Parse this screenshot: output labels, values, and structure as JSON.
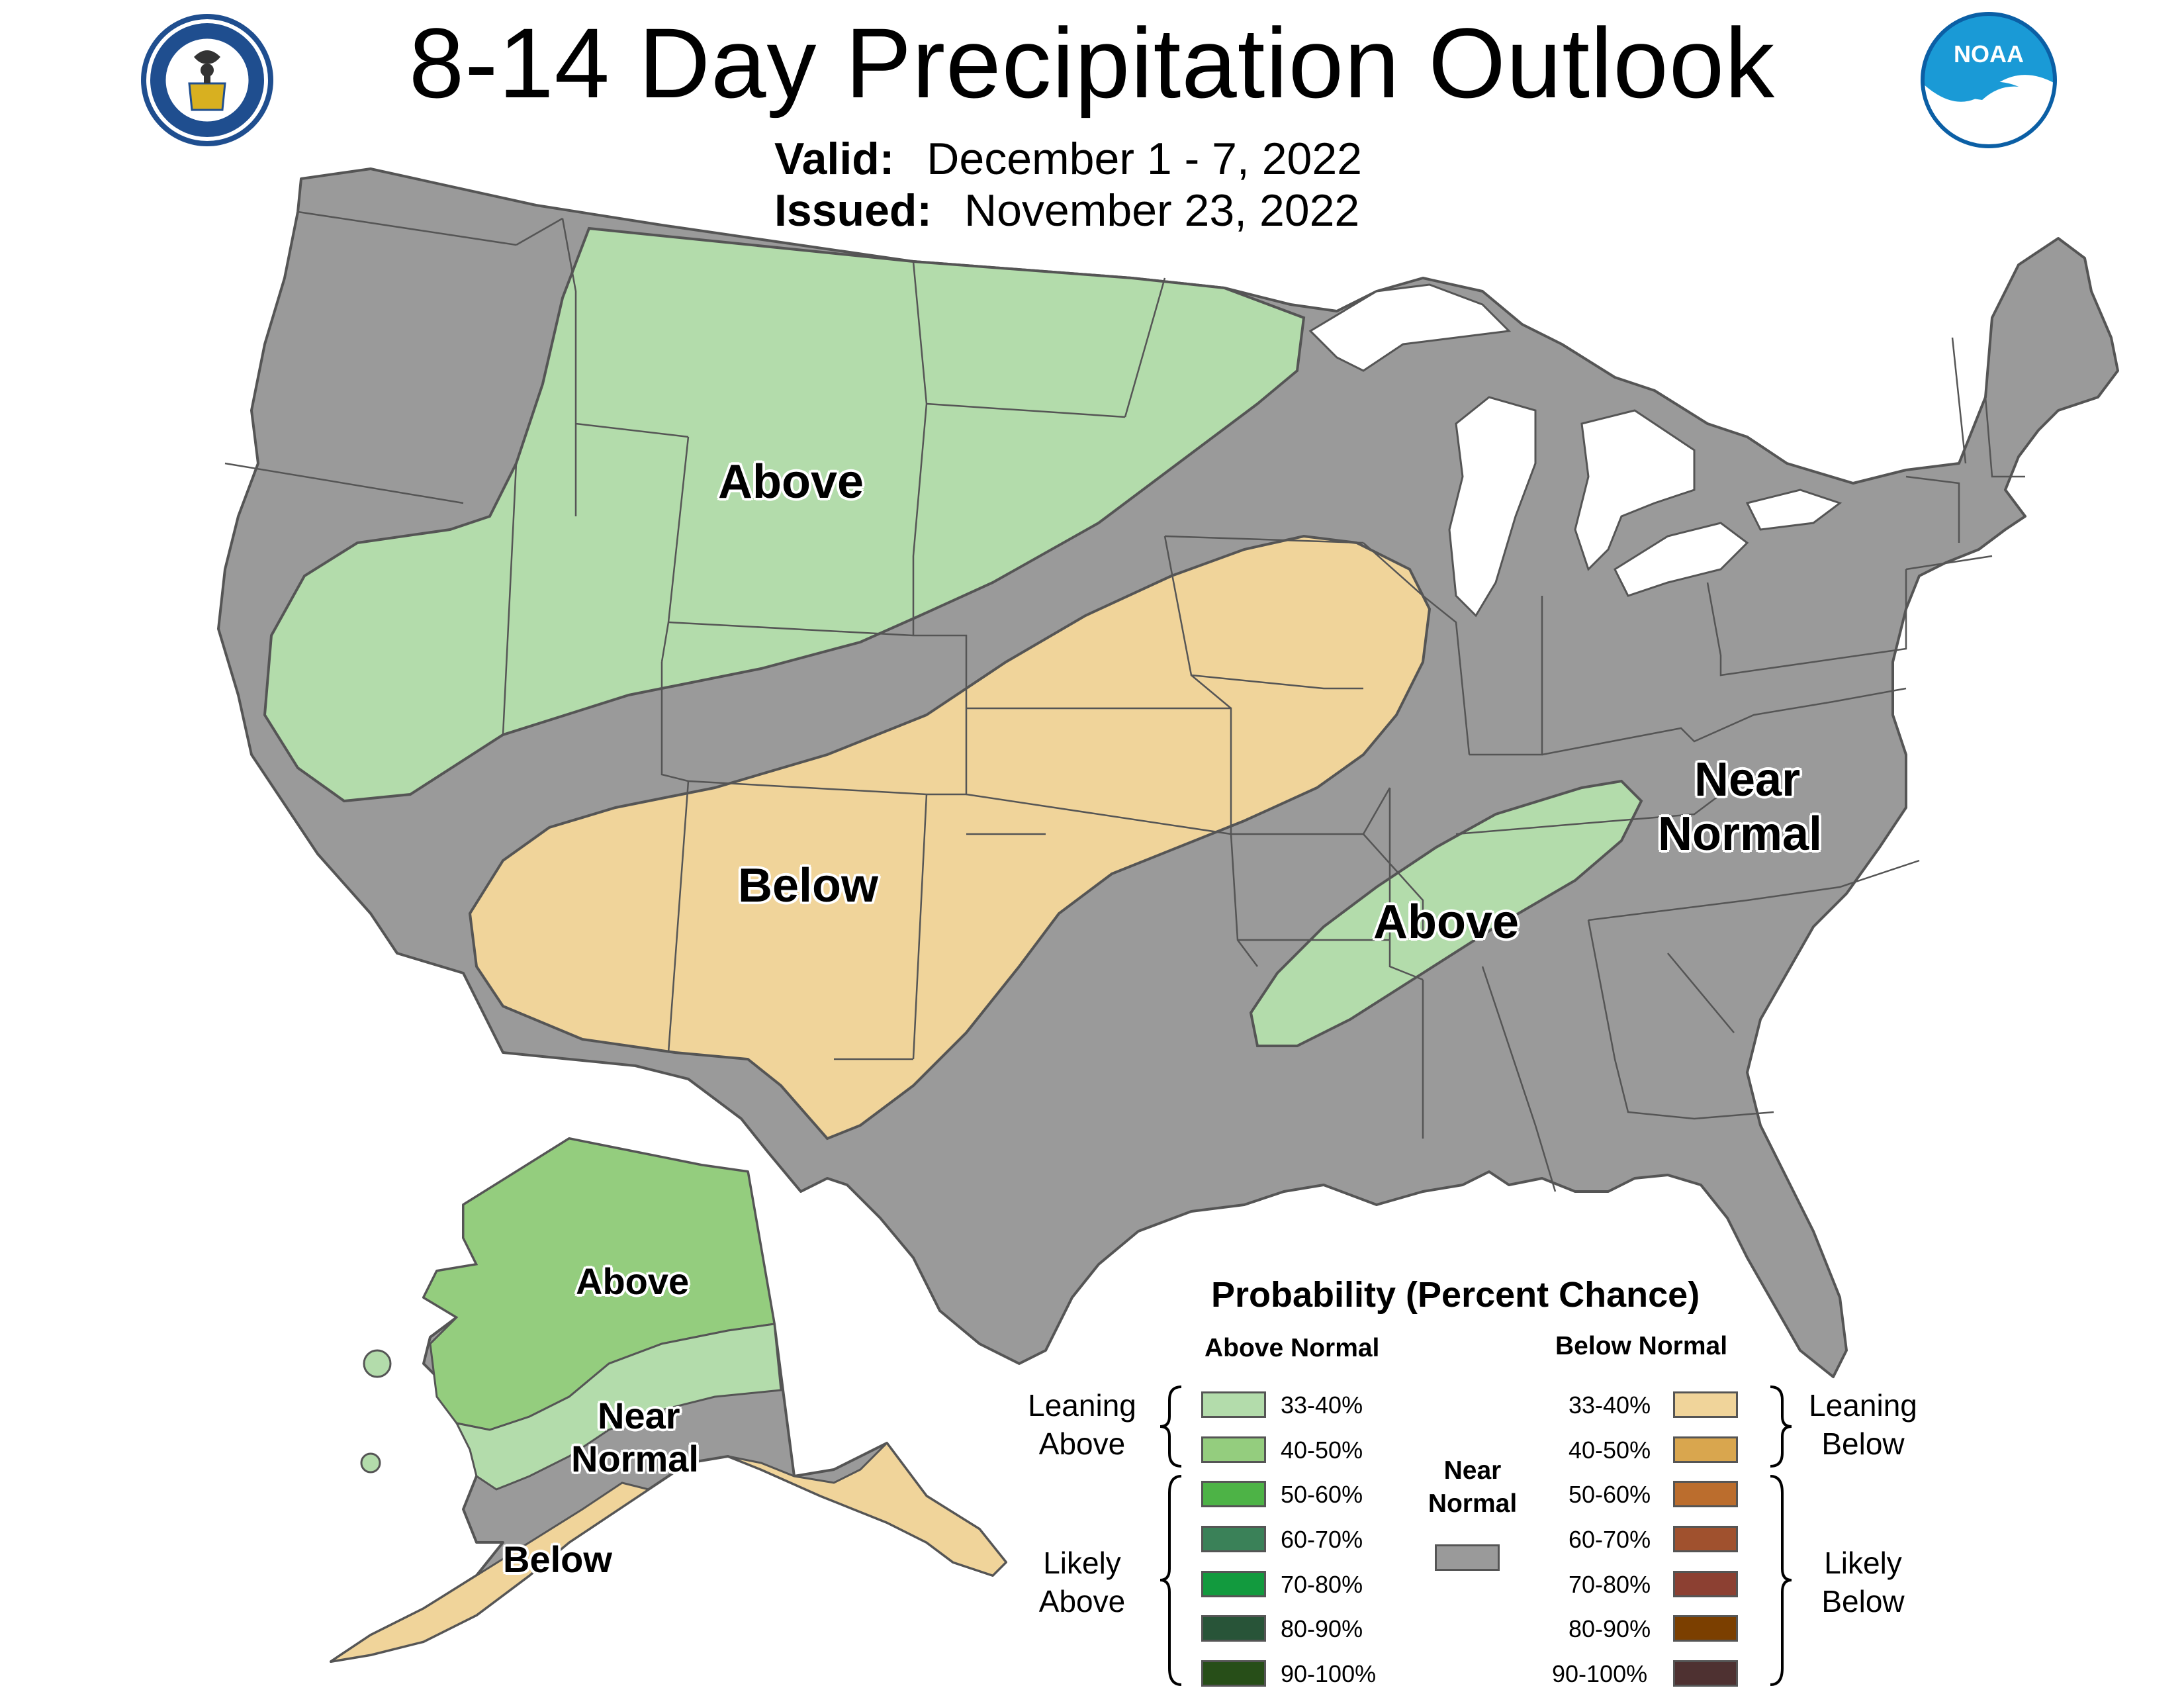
{
  "header": {
    "title": "8-14 Day Precipitation Outlook",
    "valid_label": "Valid:",
    "valid_value": "December 1 - 7, 2022",
    "issued_label": "Issued:",
    "issued_value": "November 23, 2022"
  },
  "logos": {
    "commerce_seal": "U.S. Department of Commerce seal",
    "noaa_text": "NOAA"
  },
  "colors": {
    "near_normal": "#9a9a9a",
    "above_33_40": "#b3dcab",
    "above_40_50": "#94cd7e",
    "above_50_60": "#4db346",
    "above_60_70": "#3a8158",
    "above_70_80": "#129a3e",
    "above_80_90": "#285438",
    "above_90_100": "#274e18",
    "below_33_40": "#f0d49a",
    "below_40_50": "#d9a64e",
    "below_50_60": "#bb6d2d",
    "below_60_70": "#a0512e",
    "below_70_80": "#8c4032",
    "below_80_90": "#7b3f00",
    "below_90_100": "#4e3131",
    "water": "#ffffff",
    "border": "#555555"
  },
  "map_labels": {
    "conus_above_north": "Above",
    "conus_below": "Below",
    "conus_above_southeast": "Above",
    "conus_near_normal_1": "Near",
    "conus_near_normal_2": "Normal",
    "alaska_above": "Above",
    "alaska_near_normal_1": "Near",
    "alaska_near_normal_2": "Normal",
    "alaska_below": "Below"
  },
  "legend": {
    "title": "Probability (Percent Chance)",
    "above_header": "Above Normal",
    "below_header": "Below Normal",
    "near_normal_1": "Near",
    "near_normal_2": "Normal",
    "leaning_above_1": "Leaning",
    "leaning_above_2": "Above",
    "likely_above_1": "Likely",
    "likely_above_2": "Above",
    "leaning_below_1": "Leaning",
    "leaning_below_2": "Below",
    "likely_below_1": "Likely",
    "likely_below_2": "Below",
    "above_rows": [
      "33-40%",
      "40-50%",
      "50-60%",
      "60-70%",
      "70-80%",
      "80-90%",
      "90-100%"
    ],
    "below_rows": [
      "33-40%",
      "40-50%",
      "50-60%",
      "60-70%",
      "70-80%",
      "80-90%",
      "90-100%"
    ]
  }
}
